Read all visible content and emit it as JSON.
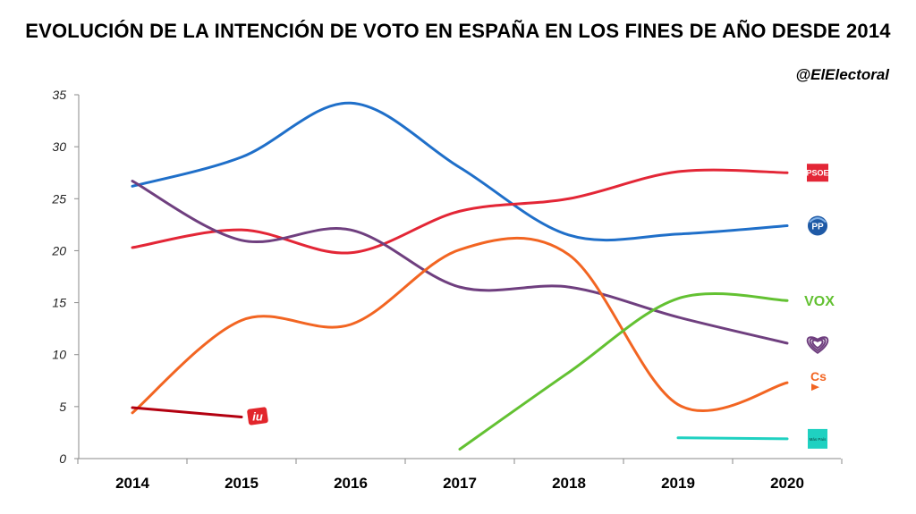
{
  "title": "EVOLUCIÓN DE LA INTENCIÓN DE VOTO EN ESPAÑA EN LOS FINES DE AÑO DESDE 2014",
  "handle": "@ElElectoral",
  "chart_data": {
    "type": "line",
    "title": "EVOLUCIÓN DE LA INTENCIÓN DE VOTO EN ESPAÑA EN LOS FINES DE AÑO DESDE 2014",
    "x": [
      "2014",
      "2015",
      "2016",
      "2017",
      "2018",
      "2019",
      "2020"
    ],
    "ylim": [
      0,
      35
    ],
    "yticks": [
      "0",
      "5",
      "10",
      "15",
      "20",
      "25",
      "30",
      "35"
    ],
    "grid": false,
    "series": [
      {
        "key": "pp",
        "color": "#1f6fc9",
        "smooth": true,
        "values": [
          26.2,
          29.0,
          34.2,
          28.0,
          21.5,
          21.6,
          22.4
        ]
      },
      {
        "key": "psoe",
        "color": "#e32636",
        "smooth": true,
        "values": [
          20.3,
          22.0,
          19.8,
          23.8,
          25.0,
          27.6,
          27.5
        ]
      },
      {
        "key": "podemos",
        "color": "#6f3f7f",
        "smooth": true,
        "values": [
          26.7,
          21.0,
          22.0,
          16.5,
          16.5,
          13.6,
          11.1
        ]
      },
      {
        "key": "cs",
        "color": "#f26522",
        "smooth": true,
        "values": [
          4.4,
          13.3,
          12.9,
          20.1,
          19.6,
          5.2,
          7.3
        ]
      },
      {
        "key": "vox",
        "color": "#63c132",
        "smooth": true,
        "values": [
          null,
          null,
          null,
          0.9,
          8.3,
          15.4,
          15.2
        ]
      },
      {
        "key": "iu",
        "color": "#b30010",
        "smooth": false,
        "values": [
          4.9,
          4.0,
          null,
          null,
          null,
          null,
          null
        ]
      },
      {
        "key": "mas_pais",
        "color": "#1fd1c1",
        "smooth": false,
        "values": [
          null,
          null,
          null,
          null,
          null,
          2.0,
          1.9
        ]
      }
    ],
    "legend_logos": [
      {
        "key": "psoe",
        "text": "PSOE",
        "color": "#e32636"
      },
      {
        "key": "pp",
        "text": "PP",
        "color": "#1f5aa6"
      },
      {
        "key": "vox",
        "text": "VOX",
        "color": "#63c132"
      },
      {
        "key": "podemos",
        "text": "",
        "color": "#6f3f7f"
      },
      {
        "key": "cs",
        "text": "Cs",
        "color": "#f26522"
      },
      {
        "key": "mas_pais",
        "text": "Más País",
        "color": "#1fd1c1"
      },
      {
        "key": "iu",
        "text": "iu",
        "color": "#e2252b"
      }
    ]
  }
}
